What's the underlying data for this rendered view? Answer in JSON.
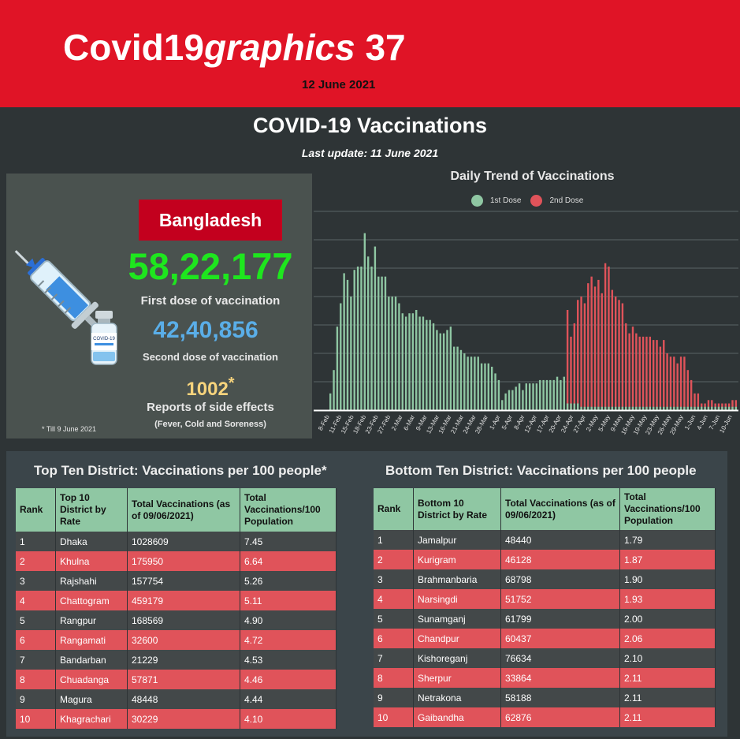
{
  "header": {
    "brand_plain": "Covid19",
    "brand_italic": "graphics",
    "brand_number": "37",
    "date": "12 June 2021"
  },
  "title": "COVID-19  Vaccinations",
  "last_update": "Last update: 11 June 2021",
  "summary": {
    "country": "Bangladesh",
    "first_dose_value": "58,22,177",
    "first_dose_label": "First dose of vaccination",
    "second_dose_value": "42,40,856",
    "second_dose_label": "Second dose of vaccination",
    "side_effects_value": "1002",
    "side_effects_mark": "*",
    "side_effects_label": "Reports of side effects",
    "side_effects_detail": "(Fever, Cold and Soreness)",
    "footnote": "* Till 9 June 2021",
    "vial_label": "COVID-19"
  },
  "colors": {
    "header_red": "#e01426",
    "first_dose": "#8fc7a3",
    "second_dose": "#e0535a",
    "first_value_green": "#1ee61e",
    "second_value_blue": "#5aaee8",
    "side_value_yellow": "#f6d37c"
  },
  "chart_data": {
    "type": "bar",
    "title": "Daily Trend of Vaccinations",
    "legend_position": "top",
    "series": [
      {
        "name": "1st Dose",
        "color": "#8fc7a3",
        "values": [
          5,
          12,
          25,
          32,
          41,
          39,
          34,
          42,
          43,
          43,
          53,
          46,
          43,
          49,
          40,
          40,
          40,
          34,
          34,
          34,
          32,
          29,
          28,
          29,
          29,
          30,
          28,
          28,
          27,
          27,
          26,
          24,
          23,
          23,
          24,
          25,
          19,
          19,
          18,
          17,
          16,
          16,
          16,
          16,
          14,
          14,
          14,
          13,
          11,
          9,
          3,
          5,
          6,
          6,
          7,
          8,
          6,
          8,
          8,
          8,
          8,
          9,
          9,
          9,
          9,
          9,
          10,
          9,
          10,
          2,
          2,
          2,
          2,
          1,
          1,
          1,
          1,
          1,
          1,
          1,
          1,
          1,
          1,
          1,
          1,
          1,
          1,
          1,
          1,
          1,
          1,
          1,
          1,
          1,
          1,
          1,
          1,
          1,
          1,
          1,
          1,
          1,
          1,
          1,
          1,
          1,
          1,
          1,
          1,
          1,
          1,
          1,
          1,
          1,
          1,
          1,
          1,
          1,
          1
        ]
      },
      {
        "name": "2nd Dose",
        "color": "#e0535a",
        "values": [
          0,
          0,
          0,
          0,
          0,
          0,
          0,
          0,
          0,
          0,
          0,
          0,
          0,
          0,
          0,
          0,
          0,
          0,
          0,
          0,
          0,
          0,
          0,
          0,
          0,
          0,
          0,
          0,
          0,
          0,
          0,
          0,
          0,
          0,
          0,
          0,
          0,
          0,
          0,
          0,
          0,
          0,
          0,
          0,
          0,
          0,
          0,
          0,
          0,
          0,
          0,
          0,
          0,
          0,
          0,
          0,
          0,
          0,
          0,
          0,
          0,
          0,
          0,
          0,
          0,
          0,
          0,
          0,
          0,
          30,
          22,
          26,
          33,
          34,
          32,
          38,
          40,
          37,
          39,
          35,
          44,
          43,
          36,
          34,
          33,
          32,
          26,
          23,
          25,
          23,
          22,
          22,
          22,
          22,
          21,
          21,
          19,
          21,
          17,
          16,
          16,
          14,
          16,
          16,
          12,
          9,
          5,
          5,
          2,
          2,
          3,
          3,
          2,
          2,
          2,
          2,
          2,
          3,
          3,
          3,
          3,
          3,
          4,
          5,
          4
        ]
      }
    ],
    "x_tick_labels": [
      "8-Feb",
      "11-Feb",
      "15-Feb",
      "18-Feb",
      "23-Feb",
      "27-Feb",
      "2-Mar",
      "6-Mar",
      "9-Mar",
      "13-Mar",
      "16-Mar",
      "21-Mar",
      "24-Mar",
      "28-Mar",
      "1-Apr",
      "5-Apr",
      "8-Apr",
      "12-Apr",
      "17-Apr",
      "20-Apr",
      "24-Apr",
      "27-Apr",
      "2-May",
      "5-May",
      "9-May",
      "16-May",
      "19-May",
      "23-May",
      "26-May",
      "29-May",
      "1-Jun",
      "4-Jun",
      "7-Jun",
      "10-Jun"
    ],
    "grid": true
  },
  "top_table": {
    "title": "Top Ten District: Vaccinations per 100 people*",
    "headers": [
      "Rank",
      "Top 10 District by Rate",
      "Total Vaccinations (as of 09/06/2021)",
      "Total Vaccinations/100 Population"
    ],
    "rows": [
      [
        "1",
        "Dhaka",
        "1028609",
        "7.45"
      ],
      [
        "2",
        "Khulna",
        "175950",
        "6.64"
      ],
      [
        "3",
        "Rajshahi",
        "157754",
        "5.26"
      ],
      [
        "4",
        "Chattogram",
        "459179",
        "5.11"
      ],
      [
        "5",
        "Rangpur",
        "168569",
        "4.90"
      ],
      [
        "6",
        "Rangamati",
        "32600",
        "4.72"
      ],
      [
        "7",
        "Bandarban",
        "21229",
        "4.53"
      ],
      [
        "8",
        "Chuadanga",
        "57871",
        "4.46"
      ],
      [
        "9",
        "Magura",
        "48448",
        "4.44"
      ],
      [
        "10",
        "Khagrachari",
        "30229",
        "4.10"
      ]
    ]
  },
  "bottom_table": {
    "title": "Bottom Ten District: Vaccinations per 100 people",
    "headers": [
      "Rank",
      "Bottom 10 District by Rate",
      "Total Vaccinations (as of 09/06/2021)",
      "Total Vaccinations/100 Population"
    ],
    "rows": [
      [
        "1",
        "Jamalpur",
        "48440",
        "1.79"
      ],
      [
        "2",
        "Kurigram",
        "46128",
        "1.87"
      ],
      [
        "3",
        "Brahmanbaria",
        "68798",
        "1.90"
      ],
      [
        "4",
        "Narsingdi",
        "51752",
        "1.93"
      ],
      [
        "5",
        "Sunamganj",
        "61799",
        "2.00"
      ],
      [
        "6",
        "Chandpur",
        "60437",
        "2.06"
      ],
      [
        "7",
        "Kishoreganj",
        "76634",
        "2.10"
      ],
      [
        "8",
        "Sherpur",
        "33864",
        "2.11"
      ],
      [
        "9",
        "Netrakona",
        "58188",
        "2.11"
      ],
      [
        "10",
        "Gaibandha",
        "62876",
        "2.11"
      ]
    ]
  }
}
